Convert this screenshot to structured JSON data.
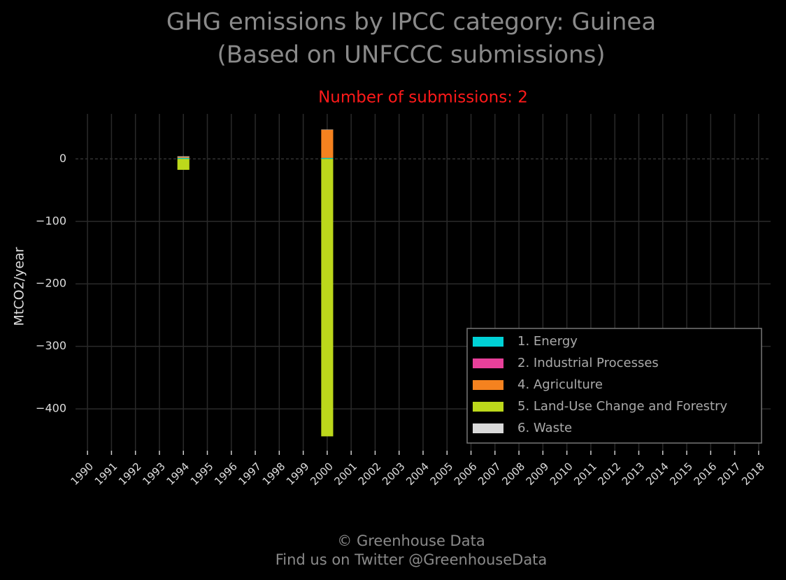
{
  "chart_data": {
    "type": "stacked-bar",
    "title": [
      "GHG emissions by IPCC category: Guinea",
      "(Based on UNFCCC submissions)"
    ],
    "subtitle": "Number of submissions: 2",
    "y_label": "MtCO2/year",
    "footer": [
      "© Greenhouse Data",
      "Find us on Twitter @GreenhouseData"
    ],
    "categories": [
      "1990",
      "1991",
      "1992",
      "1993",
      "1994",
      "1995",
      "1996",
      "1997",
      "1998",
      "1999",
      "2000",
      "2001",
      "2002",
      "2003",
      "2004",
      "2005",
      "2006",
      "2007",
      "2008",
      "2009",
      "2010",
      "2011",
      "2012",
      "2013",
      "2014",
      "2015",
      "2016",
      "2017",
      "2018"
    ],
    "series": [
      {
        "name": "1. Energy",
        "color": "#00d1d6",
        "values": [
          null,
          null,
          null,
          null,
          1.5,
          null,
          null,
          null,
          null,
          null,
          1.5,
          null,
          null,
          null,
          null,
          null,
          null,
          null,
          null,
          null,
          null,
          null,
          null,
          null,
          null,
          null,
          null,
          null,
          null
        ]
      },
      {
        "name": "2. Industrial Processes",
        "color": "#e8409a",
        "values": [
          null,
          null,
          null,
          null,
          0.1,
          null,
          null,
          null,
          null,
          null,
          0.1,
          null,
          null,
          null,
          null,
          null,
          null,
          null,
          null,
          null,
          null,
          null,
          null,
          null,
          null,
          null,
          null,
          null,
          null
        ]
      },
      {
        "name": "4. Agriculture",
        "color": "#f5821f",
        "values": [
          null,
          null,
          null,
          null,
          1.5,
          null,
          null,
          null,
          null,
          null,
          45,
          null,
          null,
          null,
          null,
          null,
          null,
          null,
          null,
          null,
          null,
          null,
          null,
          null,
          null,
          null,
          null,
          null,
          null
        ]
      },
      {
        "name": "5. Land-Use Change and Forestry",
        "color": "#bcd81b",
        "values": [
          null,
          null,
          null,
          null,
          -17.5,
          null,
          null,
          null,
          null,
          null,
          -444,
          null,
          null,
          null,
          null,
          null,
          null,
          null,
          null,
          null,
          null,
          null,
          null,
          null,
          null,
          null,
          null,
          null,
          null
        ]
      },
      {
        "name": "6. Waste",
        "color": "#d9d9d9",
        "values": [
          null,
          null,
          null,
          null,
          1,
          null,
          null,
          null,
          null,
          null,
          0.5,
          null,
          null,
          null,
          null,
          null,
          null,
          null,
          null,
          null,
          null,
          null,
          null,
          null,
          null,
          null,
          null,
          null,
          null
        ]
      }
    ],
    "ylim": [
      -467,
      72
    ],
    "yticks": [
      {
        "value": -400,
        "label": "−400"
      },
      {
        "value": -300,
        "label": "−300"
      },
      {
        "value": -200,
        "label": "−200"
      },
      {
        "value": -100,
        "label": "−100"
      },
      0
    ],
    "grid": true,
    "legend": "lower right"
  }
}
